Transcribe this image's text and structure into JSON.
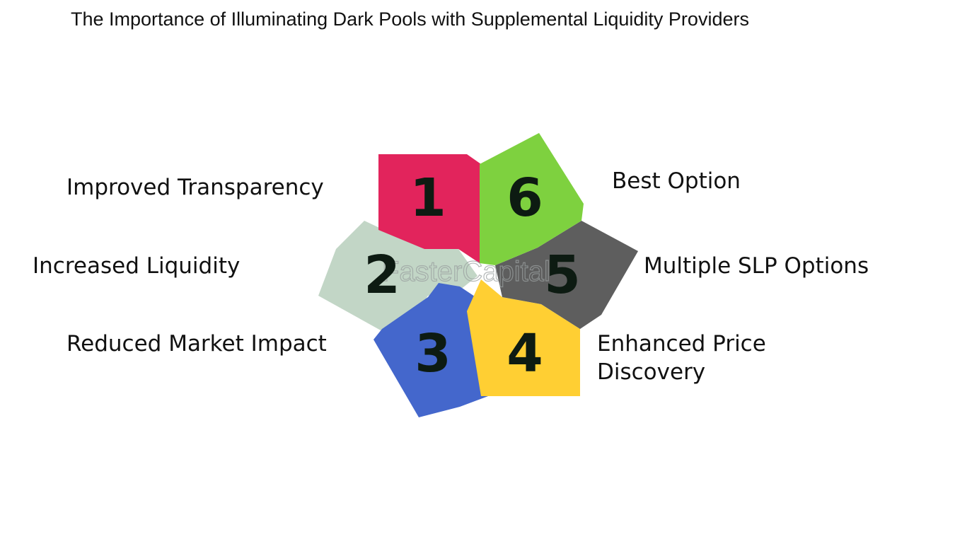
{
  "title": "The Importance of Illuminating Dark Pools with Supplemental Liquidity Providers",
  "watermark": "FasterCapital",
  "items": [
    {
      "number": "1",
      "label": "Improved Transparency",
      "color": "#e2245c"
    },
    {
      "number": "2",
      "label": "Increased Liquidity",
      "color": "#c2d6c6"
    },
    {
      "number": "3",
      "label": "Reduced Market Impact",
      "color": "#4467cc"
    },
    {
      "number": "4",
      "label_line1": "Enhanced Price",
      "label_line2": "Discovery",
      "color": "#ffcf33"
    },
    {
      "number": "5",
      "label": "Multiple SLP Options",
      "color": "#5e5e5e"
    },
    {
      "number": "6",
      "label": "Best Option",
      "color": "#7ed13f"
    }
  ]
}
